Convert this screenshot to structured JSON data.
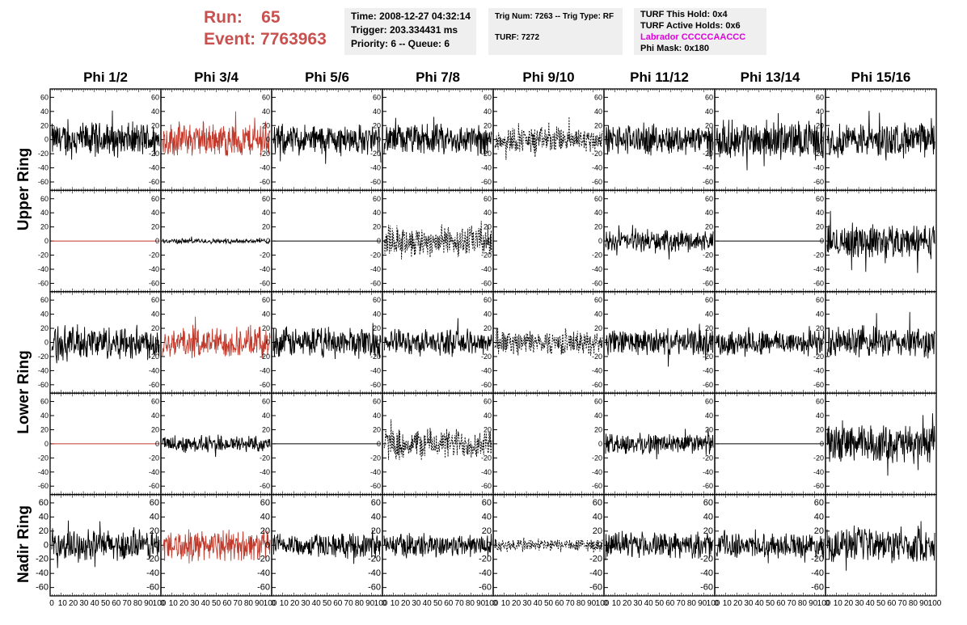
{
  "header": {
    "run_label": "Run:",
    "run_value": "65",
    "event_label": "Event:",
    "event_value": "7763963",
    "time": "Time: 2008-12-27 04:32:14",
    "trigger": "Trigger: 203.334431 ms",
    "priority": "Priority: 6 -- Queue: 6",
    "trig_num": "Trig Num: 7263 -- Trig Type: RF",
    "turf": "TURF: 7272",
    "turf_hold": "TURF This Hold: 0x4",
    "turf_active": "TURF Active Holds: 0x6",
    "labrador": "Labrador CCCCCAACCC",
    "phi_mask": "Phi Mask: 0x180",
    "labrador_color": "#e000e0",
    "run_color": "#c8514f"
  },
  "columns": [
    "Phi 1/2",
    "Phi 3/4",
    "Phi 5/6",
    "Phi 7/8",
    "Phi 9/10",
    "Phi 11/12",
    "Phi 13/14",
    "Phi 15/16"
  ],
  "rings": [
    "Upper Ring",
    "Lower Ring",
    "Nadir Ring"
  ],
  "chart_data": {
    "type": "line",
    "title": "",
    "xlabel": "",
    "ylabel": "",
    "xlim": [
      0,
      100
    ],
    "ylim": [
      -65,
      65
    ],
    "x_ticks": [
      "0",
      "10",
      "20",
      "30",
      "40",
      "50",
      "60",
      "70",
      "80",
      "90",
      "100"
    ],
    "y_ticks": [
      "-60",
      "-40",
      "-20",
      "0",
      "20",
      "40",
      "60"
    ],
    "rows": 5,
    "cols": 8,
    "grid": false,
    "highlight_color": "#c0392b",
    "trace_color": "#000000",
    "panels": [
      [
        {
          "style": "solid",
          "amp": 20
        },
        {
          "style": "red",
          "amp": 20
        },
        {
          "style": "solid",
          "amp": 18
        },
        {
          "style": "solid",
          "amp": 18
        },
        {
          "style": "dashed",
          "amp": 15
        },
        {
          "style": "solid",
          "amp": 18
        },
        {
          "style": "solid",
          "amp": 22
        },
        {
          "style": "solid",
          "amp": 20
        }
      ],
      [
        {
          "style": "flat-red",
          "amp": 0
        },
        {
          "style": "solid",
          "amp": 3
        },
        {
          "style": "flat",
          "amp": 0
        },
        {
          "style": "dashed",
          "amp": 18
        },
        {
          "style": "none",
          "amp": 0
        },
        {
          "style": "solid",
          "amp": 12
        },
        {
          "style": "flat",
          "amp": 0
        },
        {
          "style": "solid",
          "amp": 20
        }
      ],
      [
        {
          "style": "solid",
          "amp": 20
        },
        {
          "style": "red",
          "amp": 18
        },
        {
          "style": "solid",
          "amp": 18
        },
        {
          "style": "solid",
          "amp": 15
        },
        {
          "style": "dashed",
          "amp": 14
        },
        {
          "style": "solid",
          "amp": 15
        },
        {
          "style": "solid",
          "amp": 15
        },
        {
          "style": "solid",
          "amp": 18
        }
      ],
      [
        {
          "style": "flat-red",
          "amp": 0
        },
        {
          "style": "solid",
          "amp": 10
        },
        {
          "style": "flat",
          "amp": 0
        },
        {
          "style": "dashed",
          "amp": 18
        },
        {
          "style": "none",
          "amp": 0
        },
        {
          "style": "solid",
          "amp": 12
        },
        {
          "style": "flat",
          "amp": 0
        },
        {
          "style": "solid",
          "amp": 22
        }
      ],
      [
        {
          "style": "solid",
          "amp": 18
        },
        {
          "style": "red",
          "amp": 18
        },
        {
          "style": "solid",
          "amp": 14
        },
        {
          "style": "solid",
          "amp": 14
        },
        {
          "style": "dashed",
          "amp": 8
        },
        {
          "style": "solid",
          "amp": 15
        },
        {
          "style": "solid",
          "amp": 14
        },
        {
          "style": "solid",
          "amp": 20
        }
      ]
    ]
  }
}
